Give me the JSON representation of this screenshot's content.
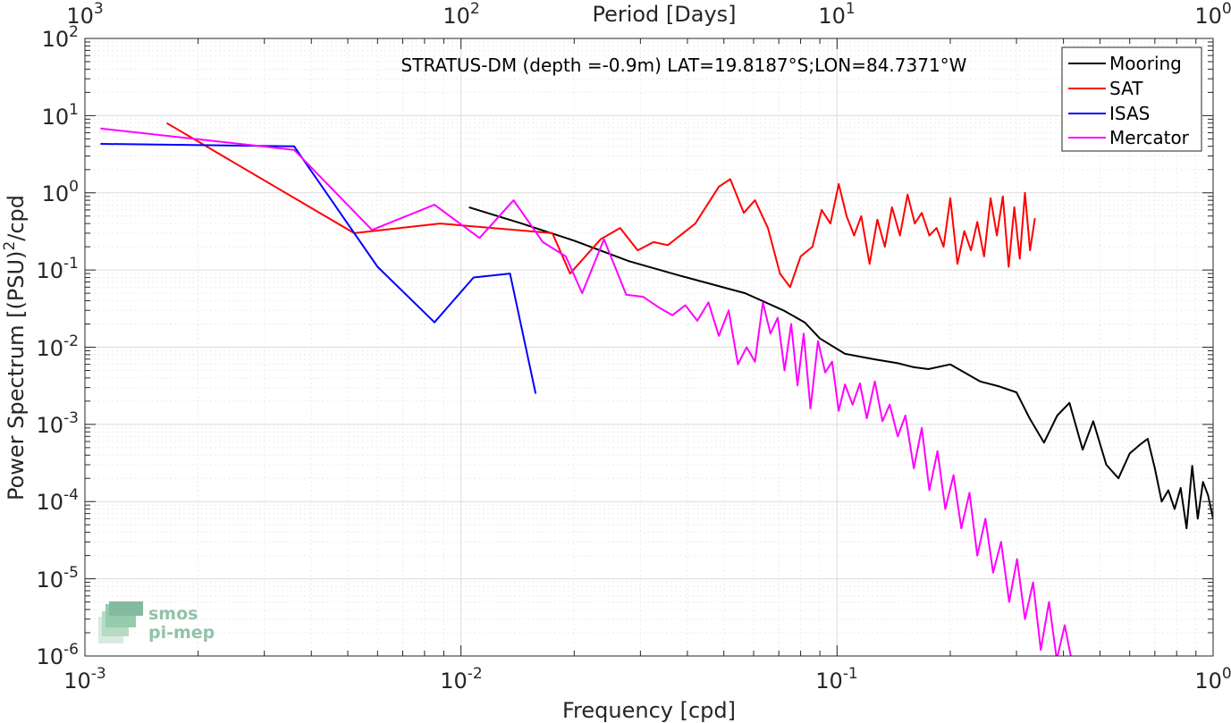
{
  "chart_data": {
    "type": "line",
    "title": "STRATUS-DM (depth =-0.9m) LAT=19.8187°S;LON=84.7371°W",
    "xlabel": "Frequency [cpd]",
    "ylabel": "Power Spectrum [(PSU)",
    "ylabel_sup": "2",
    "ylabel_suffix": "/cpd",
    "x2label": "Period [Days]",
    "xscale": "log",
    "yscale": "log",
    "xlim": [
      0.001,
      1
    ],
    "ylim": [
      1e-06,
      100
    ],
    "grid": true,
    "legend_position": "top-right",
    "xticks": [
      {
        "base": "10",
        "exp": "-3",
        "value": 0.001
      },
      {
        "base": "10",
        "exp": "-2",
        "value": 0.01
      },
      {
        "base": "10",
        "exp": "-1",
        "value": 0.1
      },
      {
        "base": "10",
        "exp": "0",
        "value": 1
      }
    ],
    "yticks": [
      {
        "base": "10",
        "exp": "-6",
        "value": 1e-06
      },
      {
        "base": "10",
        "exp": "-5",
        "value": 1e-05
      },
      {
        "base": "10",
        "exp": "-4",
        "value": 0.0001
      },
      {
        "base": "10",
        "exp": "-3",
        "value": 0.001
      },
      {
        "base": "10",
        "exp": "-2",
        "value": 0.01
      },
      {
        "base": "10",
        "exp": "-1",
        "value": 0.1
      },
      {
        "base": "10",
        "exp": "0",
        "value": 1
      },
      {
        "base": "10",
        "exp": "1",
        "value": 10
      },
      {
        "base": "10",
        "exp": "2",
        "value": 100
      }
    ],
    "x2ticks": [
      {
        "base": "10",
        "exp": "3",
        "value": 0.001
      },
      {
        "base": "10",
        "exp": "2",
        "value": 0.01
      },
      {
        "base": "10",
        "exp": "1",
        "value": 0.1
      },
      {
        "base": "10",
        "exp": "0",
        "value": 1
      }
    ],
    "series": [
      {
        "name": "Mooring",
        "color": "#000000",
        "x": [
          0.0105,
          0.0145,
          0.02,
          0.028,
          0.038,
          0.057,
          0.072,
          0.082,
          0.09,
          0.105,
          0.125,
          0.145,
          0.16,
          0.175,
          0.2,
          0.24,
          0.27,
          0.3,
          0.325,
          0.355,
          0.385,
          0.415,
          0.45,
          0.48,
          0.52,
          0.56,
          0.6,
          0.64,
          0.67,
          0.7,
          0.73,
          0.76,
          0.79,
          0.82,
          0.85,
          0.88,
          0.91,
          0.94,
          0.97,
          1.0
        ],
        "y": [
          0.65,
          0.4,
          0.24,
          0.13,
          0.085,
          0.05,
          0.03,
          0.021,
          0.013,
          0.0082,
          0.007,
          0.0062,
          0.0055,
          0.0052,
          0.006,
          0.0036,
          0.0031,
          0.0026,
          0.0012,
          0.00058,
          0.0013,
          0.0019,
          0.00047,
          0.0011,
          0.0003,
          0.0002,
          0.00042,
          0.00055,
          0.00065,
          0.00027,
          0.0001,
          0.00014,
          8e-05,
          0.00015,
          4.5e-05,
          0.00029,
          6e-05,
          0.00018,
          0.00012,
          6e-05
        ]
      },
      {
        "name": "SAT",
        "color": "#ff0000",
        "x": [
          0.00165,
          0.0052,
          0.0088,
          0.0175,
          0.0195,
          0.0235,
          0.0265,
          0.0295,
          0.0325,
          0.0355,
          0.042,
          0.0485,
          0.052,
          0.0565,
          0.0605,
          0.0655,
          0.0705,
          0.075,
          0.08,
          0.086,
          0.091,
          0.096,
          0.101,
          0.106,
          0.111,
          0.116,
          0.122,
          0.128,
          0.134,
          0.14,
          0.147,
          0.154,
          0.161,
          0.168,
          0.176,
          0.184,
          0.192,
          0.2,
          0.209,
          0.218,
          0.227,
          0.236,
          0.246,
          0.256,
          0.266,
          0.276,
          0.286,
          0.296,
          0.306,
          0.316,
          0.326,
          0.336
        ],
        "y": [
          8.0,
          0.3,
          0.4,
          0.3,
          0.09,
          0.25,
          0.35,
          0.18,
          0.23,
          0.21,
          0.4,
          1.2,
          1.5,
          0.55,
          0.8,
          0.35,
          0.09,
          0.06,
          0.15,
          0.2,
          0.6,
          0.4,
          1.3,
          0.5,
          0.28,
          0.5,
          0.12,
          0.45,
          0.2,
          0.65,
          0.28,
          0.95,
          0.4,
          0.55,
          0.28,
          0.35,
          0.2,
          0.85,
          0.12,
          0.32,
          0.18,
          0.42,
          0.15,
          0.85,
          0.28,
          0.9,
          0.11,
          0.65,
          0.14,
          1.0,
          0.18,
          0.47
        ]
      },
      {
        "name": "ISAS",
        "color": "#0000ff",
        "x": [
          0.0011,
          0.0036,
          0.006,
          0.0085,
          0.0108,
          0.0135,
          0.0158
        ],
        "y": [
          4.3,
          4.0,
          0.11,
          0.021,
          0.08,
          0.09,
          0.0025
        ]
      },
      {
        "name": "Mercator",
        "color": "#ff00ff",
        "x": [
          0.0011,
          0.0036,
          0.0058,
          0.0085,
          0.0112,
          0.0138,
          0.0165,
          0.019,
          0.021,
          0.024,
          0.0275,
          0.0305,
          0.0335,
          0.0365,
          0.0395,
          0.0425,
          0.0455,
          0.0485,
          0.0515,
          0.0545,
          0.0575,
          0.0605,
          0.0635,
          0.0665,
          0.0695,
          0.0725,
          0.0755,
          0.0785,
          0.0815,
          0.085,
          0.089,
          0.093,
          0.097,
          0.101,
          0.105,
          0.11,
          0.115,
          0.12,
          0.126,
          0.132,
          0.138,
          0.145,
          0.152,
          0.16,
          0.168,
          0.176,
          0.185,
          0.194,
          0.204,
          0.214,
          0.225,
          0.236,
          0.248,
          0.26,
          0.273,
          0.287,
          0.301,
          0.316,
          0.332,
          0.348,
          0.366,
          0.384,
          0.403,
          0.422
        ],
        "y": [
          6.8,
          3.6,
          0.33,
          0.7,
          0.26,
          0.8,
          0.23,
          0.15,
          0.05,
          0.25,
          0.048,
          0.045,
          0.033,
          0.026,
          0.035,
          0.022,
          0.038,
          0.014,
          0.03,
          0.006,
          0.01,
          0.0065,
          0.038,
          0.015,
          0.024,
          0.005,
          0.02,
          0.0032,
          0.015,
          0.0016,
          0.012,
          0.0047,
          0.0065,
          0.0015,
          0.0033,
          0.0018,
          0.0034,
          0.0012,
          0.0036,
          0.0011,
          0.0018,
          0.0007,
          0.0013,
          0.00027,
          0.0009,
          0.00014,
          0.00045,
          8e-05,
          0.00022,
          4.5e-05,
          0.00013,
          2e-05,
          6e-05,
          1.2e-05,
          3e-05,
          5e-06,
          1.8e-05,
          3e-06,
          9e-06,
          1.2e-06,
          5e-06,
          9e-07,
          2.5e-06,
          8e-07
        ]
      }
    ]
  },
  "logo": {
    "line1": "smos",
    "line2": "pi-mep"
  }
}
